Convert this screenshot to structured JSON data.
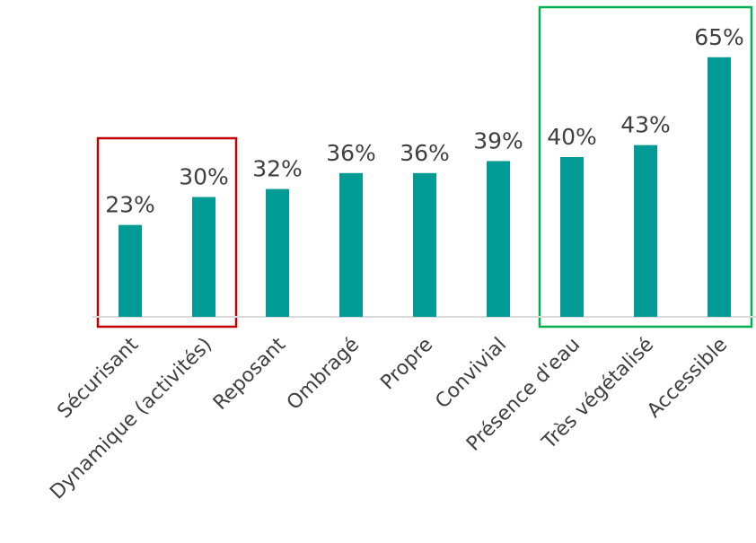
{
  "chart_data": {
    "type": "bar",
    "title": "",
    "xlabel": "",
    "ylabel": "",
    "ylim": [
      0,
      70
    ],
    "grid": false,
    "categories": [
      "Sécurisant",
      "Dynamique (activités)",
      "Reposant",
      "Ombragé",
      "Propre",
      "Convivial",
      "Présence d'eau",
      "Très végétalisé",
      "Accessible"
    ],
    "values": [
      23,
      30,
      32,
      36,
      36,
      39,
      40,
      43,
      65
    ],
    "value_labels": [
      "23%",
      "30%",
      "32%",
      "36%",
      "36%",
      "39%",
      "40%",
      "43%",
      "65%"
    ],
    "bar_color": "#009B95",
    "highlight_groups": [
      {
        "categories": [
          "Sécurisant",
          "Dynamique (activités)"
        ],
        "color": "#C00000"
      },
      {
        "categories": [
          "Présence d'eau",
          "Très végétalisé",
          "Accessible"
        ],
        "color": "#00B050"
      }
    ]
  }
}
